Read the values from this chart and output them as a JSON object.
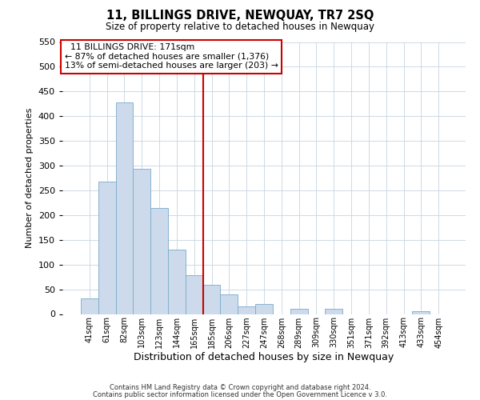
{
  "title": "11, BILLINGS DRIVE, NEWQUAY, TR7 2SQ",
  "subtitle": "Size of property relative to detached houses in Newquay",
  "xlabel": "Distribution of detached houses by size in Newquay",
  "ylabel": "Number of detached properties",
  "bar_labels": [
    "41sqm",
    "61sqm",
    "82sqm",
    "103sqm",
    "123sqm",
    "144sqm",
    "165sqm",
    "185sqm",
    "206sqm",
    "227sqm",
    "247sqm",
    "268sqm",
    "289sqm",
    "309sqm",
    "330sqm",
    "351sqm",
    "371sqm",
    "392sqm",
    "413sqm",
    "433sqm",
    "454sqm"
  ],
  "bar_values": [
    32,
    267,
    428,
    293,
    215,
    130,
    79,
    59,
    40,
    15,
    20,
    0,
    10,
    0,
    10,
    0,
    0,
    0,
    0,
    5,
    0
  ],
  "bar_color": "#ccdaeb",
  "bar_edge_color": "#7aaacb",
  "ylim": [
    0,
    550
  ],
  "yticks": [
    0,
    50,
    100,
    150,
    200,
    250,
    300,
    350,
    400,
    450,
    500,
    550
  ],
  "property_line_color": "#cc0000",
  "annotation_title": "11 BILLINGS DRIVE: 171sqm",
  "annotation_line1": "← 87% of detached houses are smaller (1,376)",
  "annotation_line2": "13% of semi-detached houses are larger (203) →",
  "annotation_box_color": "#cc0000",
  "footer_line1": "Contains HM Land Registry data © Crown copyright and database right 2024.",
  "footer_line2": "Contains public sector information licensed under the Open Government Licence v 3.0.",
  "background_color": "#ffffff",
  "grid_color": "#c8d4e0"
}
